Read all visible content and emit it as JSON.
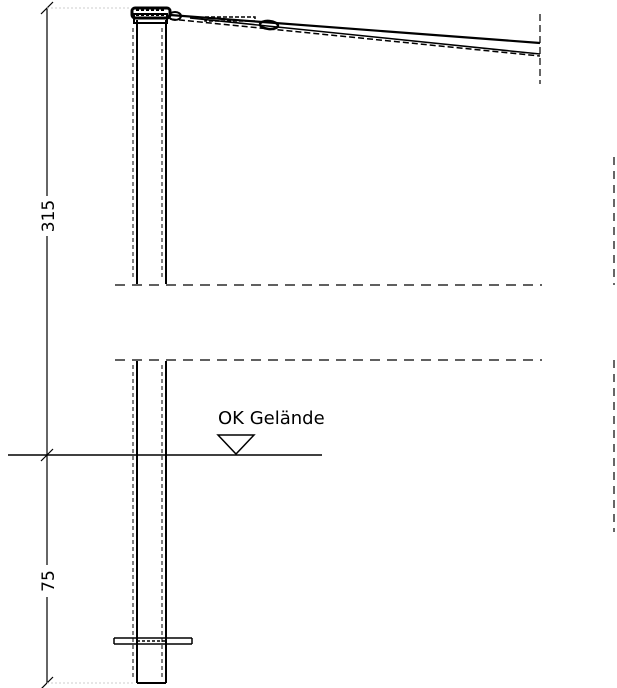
{
  "drawing": {
    "dimension_upper": "315",
    "dimension_lower": "75",
    "ground_label": "OK Gelände"
  },
  "colors": {
    "line": "#000000",
    "extension_line": "#cccccc"
  }
}
